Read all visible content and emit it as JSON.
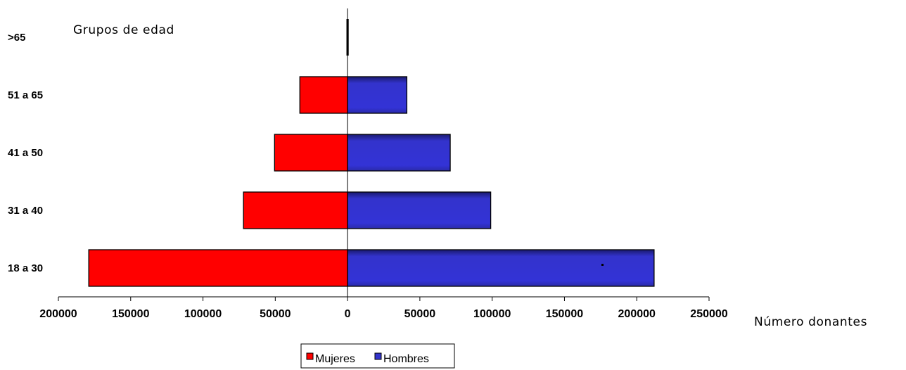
{
  "chart_data": {
    "type": "bar",
    "orientation": "horizontal",
    "subtype": "population-pyramid",
    "categories": [
      "18 a 30",
      "31 a 40",
      "41 a 50",
      "51 a 65",
      ">65"
    ],
    "series": [
      {
        "name": "Mujeres",
        "values": [
          179000,
          72000,
          50500,
          33000,
          0
        ],
        "side": "left",
        "color": "#ff0000"
      },
      {
        "name": "Hombres",
        "values": [
          212000,
          99000,
          71000,
          41000,
          0
        ],
        "side": "right",
        "color": "#3333cc"
      }
    ],
    "xlim": [
      -200000,
      250000
    ],
    "xticks": [
      -200000,
      -150000,
      -100000,
      -50000,
      0,
      50000,
      100000,
      150000,
      200000,
      250000
    ],
    "tick_labels": [
      "200000",
      "150000",
      "100000",
      "50000",
      "0",
      "50000",
      "100000",
      "150000",
      "200000",
      "250000"
    ],
    "xlabel": "Número donantes",
    "ylabel": "Grupos de edad",
    "legend": {
      "position": "bottom",
      "entries": [
        "Mujeres",
        "Hombres"
      ]
    },
    "grid": false
  }
}
